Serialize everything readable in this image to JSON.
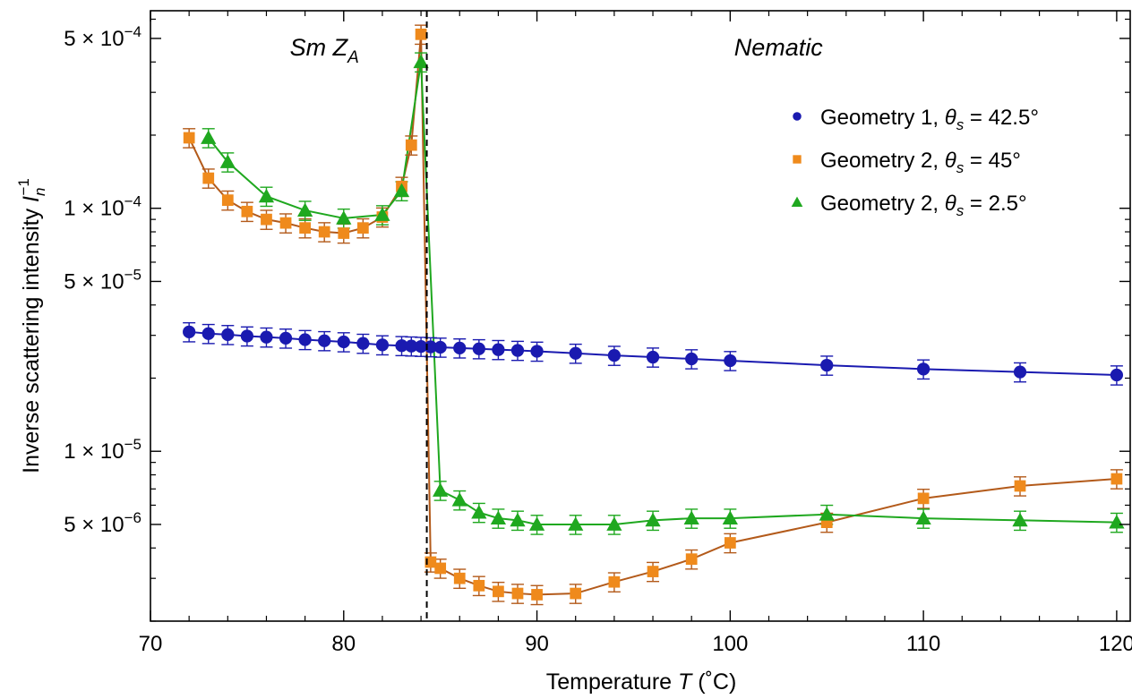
{
  "chart_data": {
    "type": "scatter",
    "xlabel": "Temperature T (˚C)",
    "ylabel": "Inverse scattering intensity I_n^{-1}",
    "xlim": [
      70,
      120.7
    ],
    "ylim": [
      2e-06,
      0.00065
    ],
    "yscale": "log",
    "grid": false,
    "legend_position": "top-right",
    "x_ticks": [
      70,
      80,
      90,
      100,
      110,
      120
    ],
    "x_tick_labels": [
      "70",
      "80",
      "90",
      "100",
      "110",
      "120"
    ],
    "y_ticks": [
      {
        "value": 5e-06,
        "mantissa": "5",
        "exp": "−6"
      },
      {
        "value": 1e-05,
        "mantissa": "1",
        "exp": "−5"
      },
      {
        "value": 5e-05,
        "mantissa": "5",
        "exp": "−5"
      },
      {
        "value": 0.0001,
        "mantissa": "1",
        "exp": "−4"
      },
      {
        "value": 0.0005,
        "mantissa": "5",
        "exp": "−4"
      }
    ],
    "transition_line_x": 84.3,
    "region_labels": [
      {
        "text": "Sm Z",
        "subscript": "A",
        "x": 79
      },
      {
        "text": "Nematic",
        "subscript": "",
        "x": 102.5
      }
    ],
    "series": [
      {
        "name": "Geometry 1, θs = 42.5°",
        "label_prefix": "Geometry 1, ",
        "label_theta": "θ",
        "label_sub": "s",
        "label_value": " = 42.5°",
        "marker": "circle",
        "color": "#1a1ab0",
        "fit_color": "#1a1ab0",
        "x": [
          72,
          73,
          74,
          75,
          76,
          77,
          78,
          79,
          80,
          81,
          82,
          83,
          83.5,
          84,
          84.5,
          85,
          86,
          87,
          88,
          89,
          90,
          92,
          94,
          96,
          98,
          100,
          105,
          110,
          115,
          120
        ],
        "y": [
          3.1e-05,
          3.05e-05,
          3.02e-05,
          2.98e-05,
          2.95e-05,
          2.92e-05,
          2.88e-05,
          2.85e-05,
          2.82e-05,
          2.78e-05,
          2.74e-05,
          2.72e-05,
          2.71e-05,
          2.7e-05,
          2.69e-05,
          2.68e-05,
          2.66e-05,
          2.64e-05,
          2.62e-05,
          2.6e-05,
          2.58e-05,
          2.53e-05,
          2.48e-05,
          2.44e-05,
          2.4e-05,
          2.36e-05,
          2.26e-05,
          2.18e-05,
          2.12e-05,
          2.06e-05
        ],
        "err_frac": 0.09
      },
      {
        "name": "Geometry 2, θs = 45°",
        "label_prefix": "Geometry 2, ",
        "label_theta": "θ",
        "label_sub": "s",
        "label_value": " = 45°",
        "marker": "square",
        "color": "#ef8a1c",
        "fit_color": "#b35a1a",
        "x": [
          72,
          73,
          74,
          75,
          76,
          77,
          78,
          79,
          80,
          81,
          82,
          83,
          83.5,
          84,
          84.5,
          85,
          86,
          87,
          88,
          89,
          90,
          92,
          94,
          96,
          98,
          100,
          105,
          110,
          115,
          120
        ],
        "y": [
          0.000195,
          0.000133,
          0.000108,
          9.7e-05,
          9e-05,
          8.7e-05,
          8.3e-05,
          8e-05,
          7.9e-05,
          8.3e-05,
          9.2e-05,
          0.000123,
          0.000182,
          0.00052,
          3.5e-06,
          3.3e-06,
          3e-06,
          2.8e-06,
          2.65e-06,
          2.6e-06,
          2.57e-06,
          2.6e-06,
          2.9e-06,
          3.2e-06,
          3.6e-06,
          4.2e-06,
          5.1e-06,
          6.4e-06,
          7.2e-06,
          7.7e-06
        ],
        "err_frac": 0.09
      },
      {
        "name": "Geometry 2, θs = 2.5°",
        "label_prefix": "Geometry 2, ",
        "label_theta": "θ",
        "label_sub": "s",
        "label_value": " = 2.5°",
        "marker": "triangle",
        "color": "#1fa81f",
        "fit_color": "#1fa81f",
        "x": [
          73,
          74,
          76,
          78,
          80,
          82,
          83,
          84,
          85,
          86,
          87,
          88,
          89,
          90,
          92,
          94,
          96,
          98,
          100,
          105,
          110,
          115,
          120
        ],
        "y": [
          0.000195,
          0.000155,
          0.000112,
          9.8e-05,
          9.1e-05,
          9.4e-05,
          0.000118,
          0.0004,
          6.9e-06,
          6.3e-06,
          5.6e-06,
          5.3e-06,
          5.2e-06,
          5e-06,
          5e-06,
          5e-06,
          5.2e-06,
          5.3e-06,
          5.3e-06,
          5.5e-06,
          5.3e-06,
          5.2e-06,
          5.1e-06
        ],
        "err_frac": 0.09
      }
    ]
  }
}
